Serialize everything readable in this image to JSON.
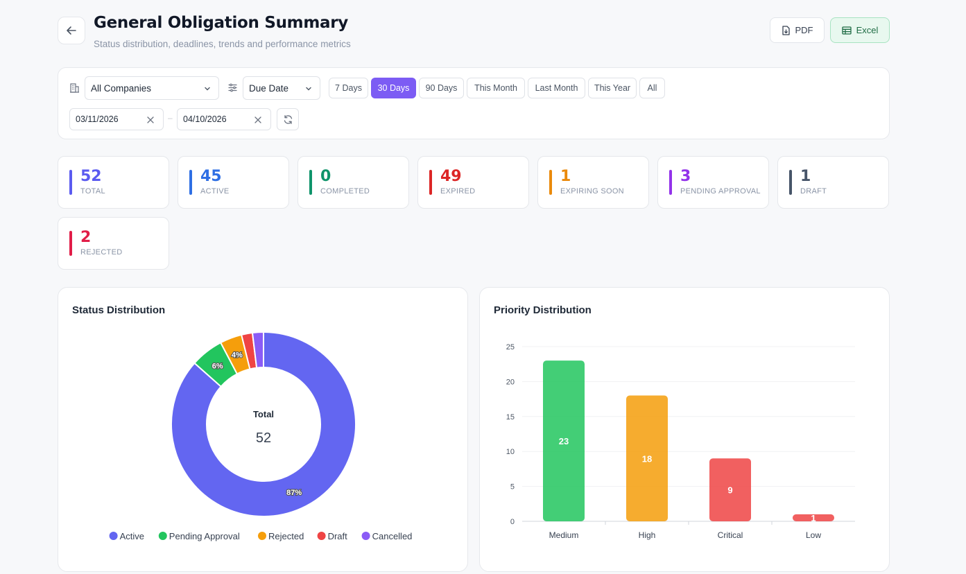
{
  "header": {
    "title": "General Obligation Summary",
    "subtitle": "Status distribution, deadlines, trends and performance metrics",
    "pdf_label": "PDF",
    "excel_label": "Excel"
  },
  "filters": {
    "company": "All Companies",
    "date_type": "Due Date",
    "ranges": [
      {
        "label": "7 Days",
        "active": false
      },
      {
        "label": "30 Days",
        "active": true
      },
      {
        "label": "90 Days",
        "active": false
      },
      {
        "label": "This Month",
        "active": false
      },
      {
        "label": "Last Month",
        "active": false
      },
      {
        "label": "This Year",
        "active": false
      },
      {
        "label": "All",
        "active": false
      }
    ],
    "date_from": "03/11/2026",
    "date_to": "04/10/2026",
    "date_separator": "–"
  },
  "stats": [
    {
      "value": "52",
      "label": "TOTAL",
      "color": "#5b5bf0"
    },
    {
      "value": "45",
      "label": "ACTIVE",
      "color": "#2f6fe4"
    },
    {
      "value": "0",
      "label": "COMPLETED",
      "color": "#10946b"
    },
    {
      "value": "49",
      "label": "EXPIRED",
      "color": "#dc2626"
    },
    {
      "value": "1",
      "label": "EXPIRING SOON",
      "color": "#ea8a0c"
    },
    {
      "value": "3",
      "label": "PENDING APPROVAL",
      "color": "#9333ea"
    },
    {
      "value": "1",
      "label": "DRAFT",
      "color": "#475569"
    },
    {
      "value": "2",
      "label": "REJECTED",
      "color": "#e11d48"
    }
  ],
  "status_panel": {
    "title": "Status Distribution",
    "center_label": "Total",
    "center_value": "52"
  },
  "priority_panel": {
    "title": "Priority Distribution"
  },
  "chart_data": [
    {
      "type": "pie",
      "variant": "doughnut",
      "categories": [
        "Active",
        "Pending Approval",
        "Rejected",
        "Draft",
        "Cancelled"
      ],
      "values": [
        45,
        3,
        2,
        1,
        1
      ],
      "colors": [
        "#6366f1",
        "#22c55e",
        "#f59e0b",
        "#ef4444",
        "#8b5cf6"
      ],
      "data_labels": [
        "87%",
        "6%",
        "4%",
        "",
        ""
      ],
      "legend": "bottom"
    },
    {
      "type": "bar",
      "categories": [
        "Medium",
        "High",
        "Critical",
        "Low"
      ],
      "values": [
        23,
        18,
        9,
        1
      ],
      "colors": [
        "#22c55e",
        "#f59e0b",
        "#ef4444",
        "#ef4444"
      ],
      "ylim": [
        0,
        25
      ],
      "yticks": [
        0,
        5,
        10,
        15,
        20,
        25
      ],
      "grid": true
    }
  ]
}
